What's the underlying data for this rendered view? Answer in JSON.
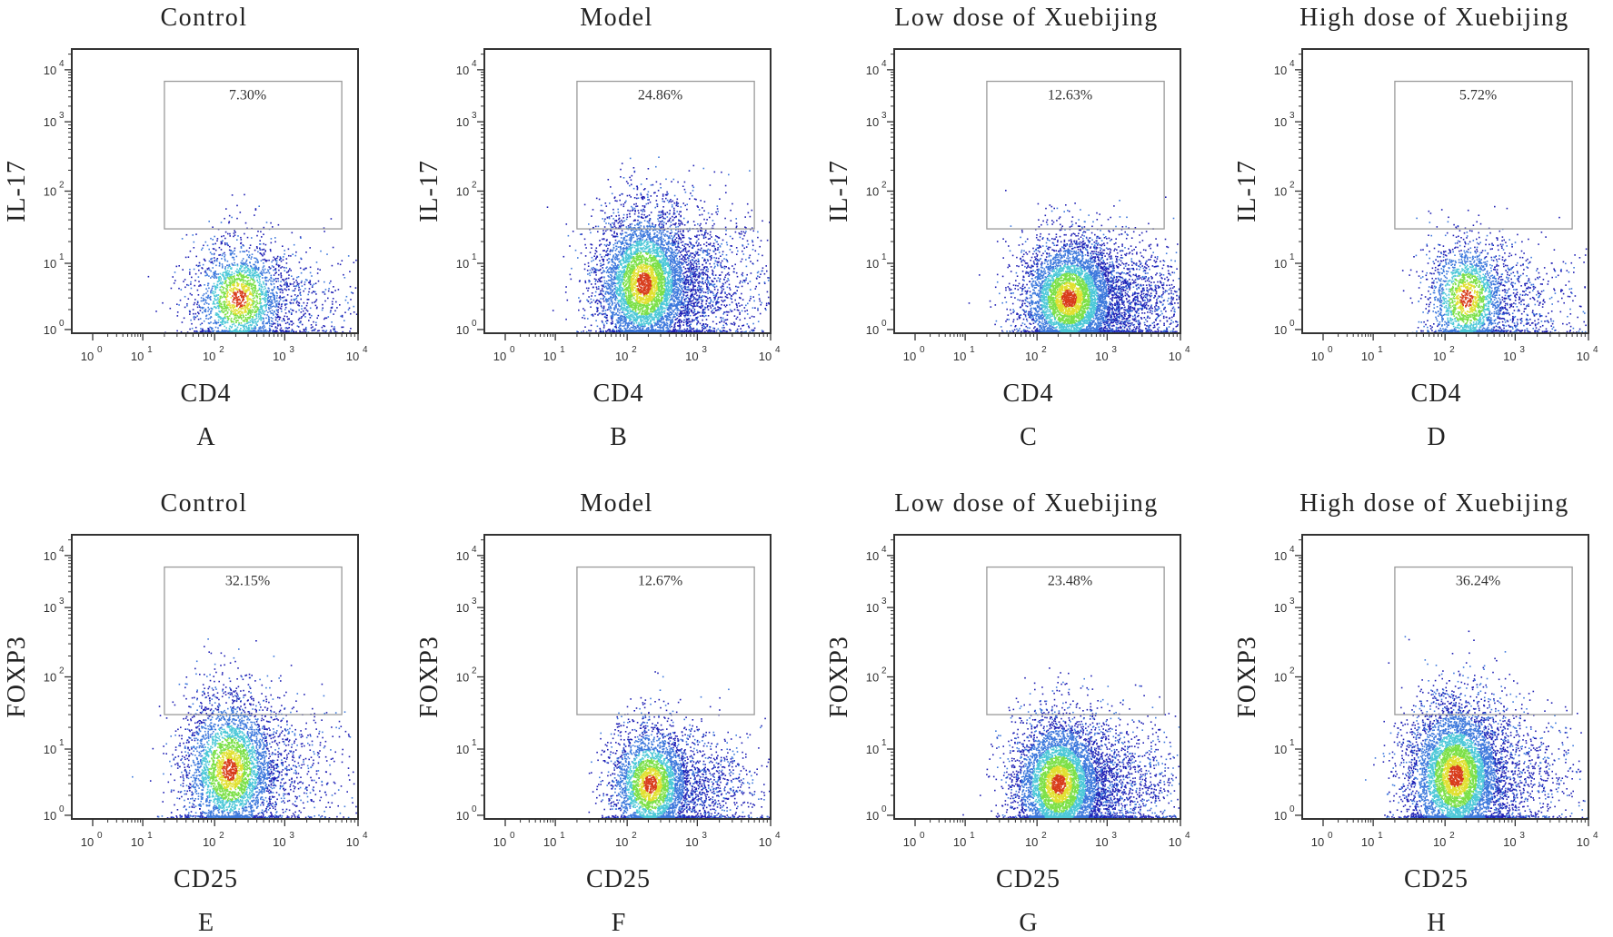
{
  "chart_data": [
    {
      "type": "scatter",
      "panel": "A",
      "title": "Control",
      "xlabel": "CD4",
      "ylabel": "IL-17",
      "x_scale": "log",
      "y_scale": "log",
      "xlim": [
        1,
        10000
      ],
      "ylim": [
        1,
        10000
      ],
      "x_ticks": [
        "10^0",
        "10^1",
        "10^2",
        "10^3",
        "10^4"
      ],
      "y_ticks": [
        "10^0",
        "10^1",
        "10^2",
        "10^3",
        "10^4"
      ],
      "gate": {
        "x_range": [
          20,
          6000
        ],
        "y_range": [
          30,
          6000
        ],
        "label": "7.30%",
        "percent": 7.3
      },
      "population": {
        "center": [
          220,
          3
        ],
        "spread_decades": [
          0.35,
          0.45
        ],
        "tail_to_high_x": 0.25,
        "density": "low"
      },
      "annotation": "7.30%"
    },
    {
      "type": "scatter",
      "panel": "B",
      "title": "Model",
      "xlabel": "CD4",
      "ylabel": "IL-17",
      "x_scale": "log",
      "y_scale": "log",
      "xlim": [
        1,
        10000
      ],
      "ylim": [
        1,
        10000
      ],
      "x_ticks": [
        "10^0",
        "10^1",
        "10^2",
        "10^3",
        "10^4"
      ],
      "y_ticks": [
        "10^0",
        "10^1",
        "10^2",
        "10^3",
        "10^4"
      ],
      "gate": {
        "x_range": [
          20,
          6000
        ],
        "y_range": [
          30,
          6000
        ],
        "label": "24.86%",
        "percent": 24.86
      },
      "population": {
        "center": [
          170,
          5
        ],
        "spread_decades": [
          0.35,
          0.55
        ],
        "tail_to_high_x": 0.3,
        "density": "high"
      },
      "annotation": "24.86%"
    },
    {
      "type": "scatter",
      "panel": "C",
      "title": "Low dose of Xuebijing",
      "xlabel": "CD4",
      "ylabel": "IL-17",
      "x_scale": "log",
      "y_scale": "log",
      "xlim": [
        1,
        10000
      ],
      "ylim": [
        1,
        10000
      ],
      "x_ticks": [
        "10^0",
        "10^1",
        "10^2",
        "10^3",
        "10^4"
      ],
      "y_ticks": [
        "10^0",
        "10^1",
        "10^2",
        "10^3",
        "10^4"
      ],
      "gate": {
        "x_range": [
          20,
          6000
        ],
        "y_range": [
          30,
          6000
        ],
        "label": "12.63%",
        "percent": 12.63
      },
      "population": {
        "center": [
          280,
          3
        ],
        "spread_decades": [
          0.35,
          0.45
        ],
        "tail_to_high_x": 0.35,
        "density": "high"
      },
      "annotation": "12.63%"
    },
    {
      "type": "scatter",
      "panel": "D",
      "title": "High dose of Xuebijing",
      "xlabel": "CD4",
      "ylabel": "IL-17",
      "x_scale": "log",
      "y_scale": "log",
      "xlim": [
        1,
        10000
      ],
      "ylim": [
        1,
        10000
      ],
      "x_ticks": [
        "10^0",
        "10^1",
        "10^2",
        "10^3",
        "10^4"
      ],
      "y_ticks": [
        "10^0",
        "10^1",
        "10^2",
        "10^3",
        "10^4"
      ],
      "gate": {
        "x_range": [
          20,
          6000
        ],
        "y_range": [
          30,
          6000
        ],
        "label": "5.72%",
        "percent": 5.72
      },
      "population": {
        "center": [
          200,
          3
        ],
        "spread_decades": [
          0.3,
          0.45
        ],
        "tail_to_high_x": 0.3,
        "density": "low"
      },
      "annotation": "5.72%"
    },
    {
      "type": "scatter",
      "panel": "E",
      "title": "Control",
      "xlabel": "CD25",
      "ylabel": "FOXP3",
      "x_scale": "log",
      "y_scale": "log",
      "xlim": [
        1,
        10000
      ],
      "ylim": [
        1,
        10000
      ],
      "x_ticks": [
        "10^0",
        "10^1",
        "10^2",
        "10^3",
        "10^4"
      ],
      "y_ticks": [
        "10^0",
        "10^1",
        "10^2",
        "10^3",
        "10^4"
      ],
      "gate": {
        "x_range": [
          20,
          6000
        ],
        "y_range": [
          30,
          6000
        ],
        "label": "32.15%",
        "percent": 32.15
      },
      "population": {
        "center": [
          160,
          5
        ],
        "spread_decades": [
          0.35,
          0.55
        ],
        "tail_to_high_x": 0.2,
        "density": "medium"
      },
      "annotation": "32.15%"
    },
    {
      "type": "scatter",
      "panel": "F",
      "title": "Model",
      "xlabel": "CD25",
      "ylabel": "FOXP3",
      "x_scale": "log",
      "y_scale": "log",
      "xlim": [
        1,
        10000
      ],
      "ylim": [
        1,
        10000
      ],
      "x_ticks": [
        "10^0",
        "10^1",
        "10^2",
        "10^3",
        "10^4"
      ],
      "y_ticks": [
        "10^0",
        "10^1",
        "10^2",
        "10^3",
        "10^4"
      ],
      "gate": {
        "x_range": [
          20,
          6000
        ],
        "y_range": [
          30,
          6000
        ],
        "label": "12.67%",
        "percent": 12.67
      },
      "population": {
        "center": [
          210,
          3
        ],
        "spread_decades": [
          0.3,
          0.45
        ],
        "tail_to_high_x": 0.3,
        "density": "medium"
      },
      "annotation": "12.67%"
    },
    {
      "type": "scatter",
      "panel": "G",
      "title": "Low dose of Xuebijing",
      "xlabel": "CD25",
      "ylabel": "FOXP3",
      "x_scale": "log",
      "y_scale": "log",
      "xlim": [
        1,
        10000
      ],
      "ylim": [
        1,
        10000
      ],
      "x_ticks": [
        "10^0",
        "10^1",
        "10^2",
        "10^3",
        "10^4"
      ],
      "y_ticks": [
        "10^0",
        "10^1",
        "10^2",
        "10^3",
        "10^4"
      ],
      "gate": {
        "x_range": [
          20,
          6000
        ],
        "y_range": [
          30,
          6000
        ],
        "label": "23.48%",
        "percent": 23.48
      },
      "population": {
        "center": [
          200,
          3
        ],
        "spread_decades": [
          0.33,
          0.5
        ],
        "tail_to_high_x": 0.3,
        "density": "high"
      },
      "annotation": "23.48%"
    },
    {
      "type": "scatter",
      "panel": "H",
      "title": "High dose of Xuebijing",
      "xlabel": "CD25",
      "ylabel": "FOXP3",
      "x_scale": "log",
      "y_scale": "log",
      "xlim": [
        1,
        10000
      ],
      "ylim": [
        1,
        10000
      ],
      "x_ticks": [
        "10^0",
        "10^1",
        "10^2",
        "10^3",
        "10^4"
      ],
      "y_ticks": [
        "10^0",
        "10^1",
        "10^2",
        "10^3",
        "10^4"
      ],
      "gate": {
        "x_range": [
          20,
          6000
        ],
        "y_range": [
          30,
          6000
        ],
        "label": "36.24%",
        "percent": 36.24
      },
      "population": {
        "center": [
          140,
          4
        ],
        "spread_decades": [
          0.35,
          0.55
        ],
        "tail_to_high_x": 0.2,
        "density": "high"
      },
      "annotation": "36.24%"
    }
  ],
  "colors": {
    "density_low": "#1e1eb4",
    "density_mid_low": "#3c78dc",
    "density_mid": "#4cc8d8",
    "density_mid_high": "#7ce048",
    "density_high": "#e0e030",
    "density_peak": "#d83c1c",
    "frame": "#333333",
    "gate": "#9a9a9a"
  }
}
